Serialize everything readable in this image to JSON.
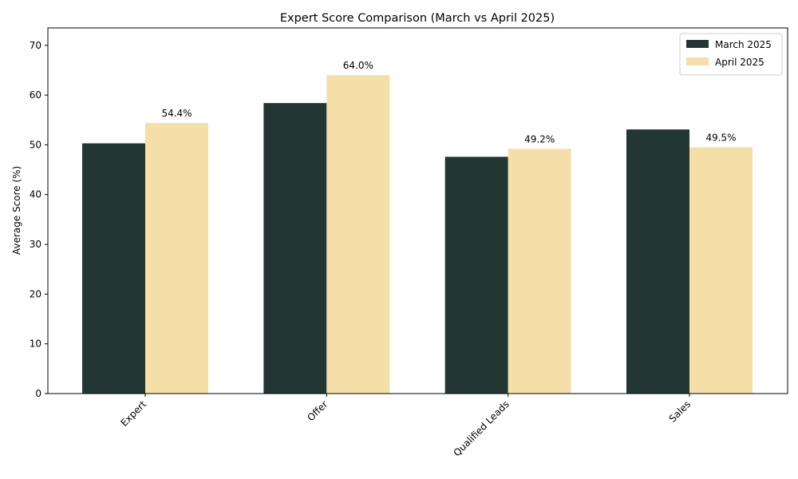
{
  "chart_data": {
    "type": "bar",
    "title": "Expert Score Comparison (March vs April 2025)",
    "xlabel": "",
    "ylabel": "Average Score (%)",
    "categories": [
      "Expert",
      "Offer",
      "Qualified Leads",
      "Sales"
    ],
    "series": [
      {
        "name": "March 2025",
        "values": [
          50.3,
          58.4,
          47.6,
          53.1
        ],
        "color": "#223634"
      },
      {
        "name": "April 2025",
        "values": [
          54.4,
          64.0,
          49.2,
          49.5
        ],
        "color": "#f5dfa8"
      }
    ],
    "data_labels": [
      "54.4%",
      "64.0%",
      "49.2%",
      "49.5%"
    ],
    "ylim": [
      0,
      73.5
    ],
    "yticks": [
      0,
      10,
      20,
      30,
      40,
      50,
      60,
      70
    ],
    "grid": false,
    "legend_position": "top-right"
  }
}
